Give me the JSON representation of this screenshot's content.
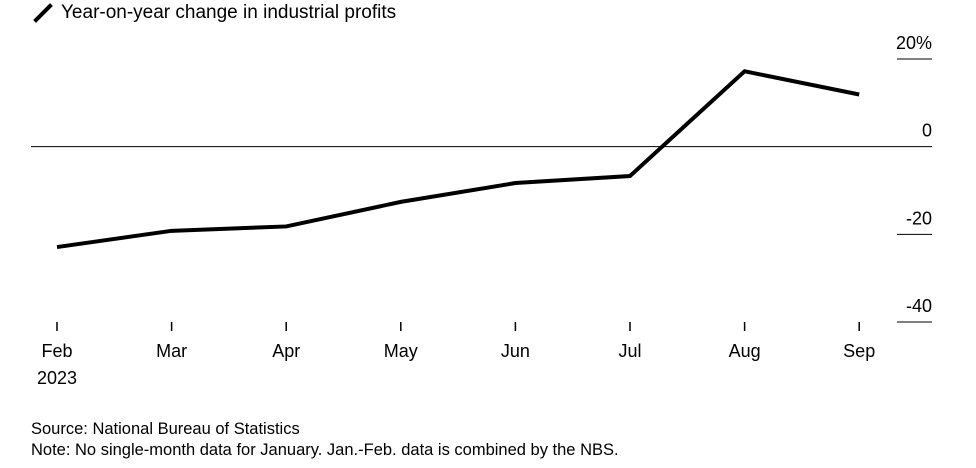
{
  "chart_data": {
    "type": "line",
    "title": "",
    "xlabel": "",
    "ylabel": "",
    "categories": [
      "Feb",
      "Mar",
      "Apr",
      "May",
      "Jun",
      "Jul",
      "Aug",
      "Sep"
    ],
    "year_label": "2023",
    "series": [
      {
        "name": "Year-on-year change in industrial profits",
        "color": "#000000",
        "values": [
          -22.9,
          -19.2,
          -18.2,
          -12.6,
          -8.3,
          -6.7,
          17.2,
          11.9
        ]
      }
    ],
    "ylim": [
      -40,
      20
    ],
    "yticks": [
      20,
      0,
      -20,
      -40
    ],
    "ytick_labels": [
      "20%",
      "0",
      "-20",
      "-40"
    ],
    "grid": false,
    "zero_line": true,
    "legend_position": "top-left"
  },
  "footer": {
    "source": "Source: National Bureau of Statistics",
    "note": "Note: No single-month data for January. Jan.-Feb. data is combined by the NBS."
  },
  "icons": {
    "legend": "line-legend-icon"
  }
}
